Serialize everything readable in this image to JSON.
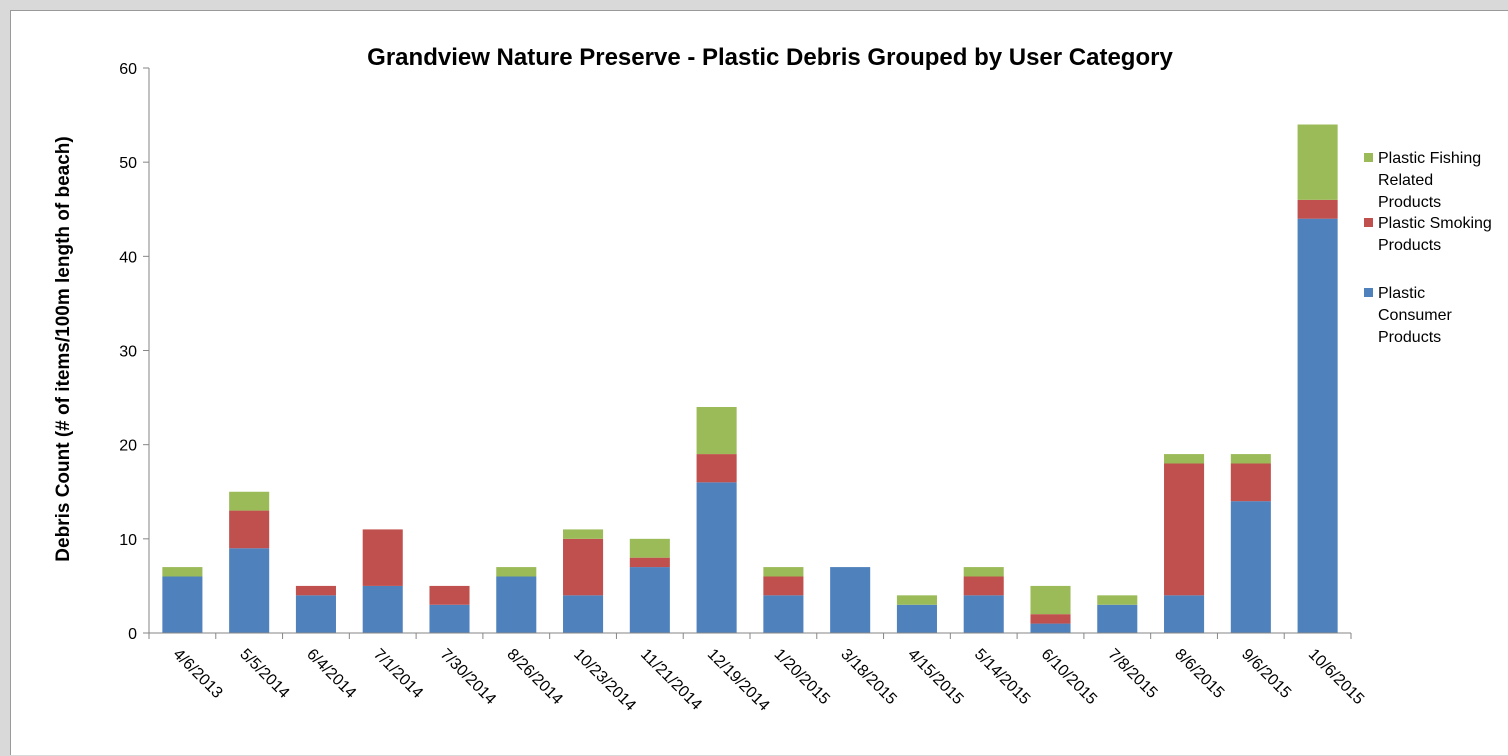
{
  "chart_data": {
    "type": "bar",
    "stacked": true,
    "title": "Grandview Nature Preserve - Plastic Debris Grouped by User Category",
    "xlabel": "",
    "ylabel": "Debris Count (# of items/100m length of beach)",
    "ylim": [
      0,
      60
    ],
    "yticks": [
      0,
      10,
      20,
      30,
      40,
      50,
      60
    ],
    "grid": false,
    "legend_position": "right",
    "categories": [
      "4/6/2013",
      "5/5/2014",
      "6/4/2014",
      "7/1/2014",
      "7/30/2014",
      "8/26/2014",
      "10/23/2014",
      "11/21/2014",
      "12/19/2014",
      "1/20/2015",
      "3/18/2015",
      "4/15/2015",
      "5/14/2015",
      "6/10/2015",
      "7/8/2015",
      "8/6/2015",
      "9/6/2015",
      "10/6/2015"
    ],
    "series": [
      {
        "name": "Plastic Consumer Products",
        "color": "#4f81bd",
        "values": [
          6,
          9,
          4,
          5,
          3,
          6,
          4,
          7,
          16,
          4,
          7,
          3,
          4,
          1,
          3,
          4,
          14,
          44
        ]
      },
      {
        "name": "Plastic Smoking Products",
        "color": "#c0504d",
        "values": [
          0,
          4,
          1,
          6,
          2,
          0,
          6,
          1,
          3,
          2,
          0,
          0,
          2,
          1,
          0,
          14,
          4,
          2
        ]
      },
      {
        "name": "Plastic Fishing Related Products",
        "color": "#9bbb59",
        "values": [
          1,
          2,
          0,
          0,
          0,
          1,
          1,
          2,
          5,
          1,
          0,
          1,
          1,
          3,
          1,
          1,
          1,
          8
        ]
      }
    ],
    "legend": [
      {
        "series": 2,
        "lines": [
          "Plastic Fishing",
          "Related",
          "Products"
        ]
      },
      {
        "series": 1,
        "lines": [
          "Plastic Smoking",
          "Products"
        ]
      },
      {
        "series": 0,
        "lines": [
          "Plastic",
          "Consumer",
          "Products"
        ]
      }
    ]
  }
}
